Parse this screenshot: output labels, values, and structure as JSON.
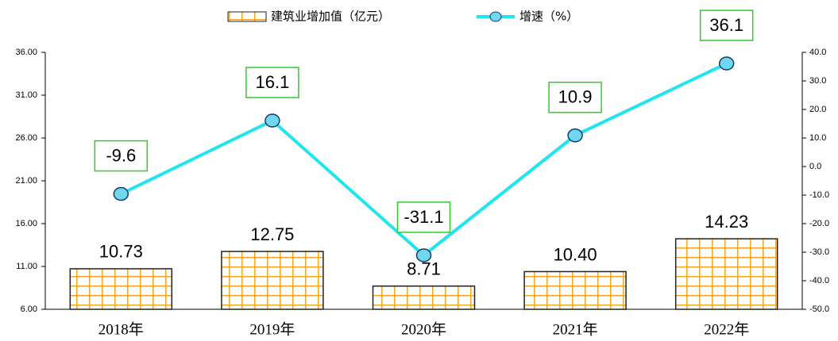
{
  "chart_data": {
    "type": "bar",
    "categories": [
      "2018年",
      "2019年",
      "2020年",
      "2021年",
      "2022年"
    ],
    "series": [
      {
        "name": "建筑业增加值（亿元）",
        "type": "bar",
        "color": "#f5a623",
        "axis": "y",
        "values": [
          10.73,
          12.75,
          8.71,
          10.4,
          14.23
        ],
        "value_labels": [
          "10.73",
          "12.75",
          "8.71",
          "10.40",
          "14.23"
        ]
      },
      {
        "name": "增速（%）",
        "type": "line",
        "color": "#1fe5f0",
        "axis": "y2",
        "values": [
          -9.6,
          16.1,
          -31.1,
          10.9,
          36.1
        ]
      }
    ],
    "ylim": [
      6,
      36
    ],
    "yticks": [
      {
        "value": 6,
        "label": "6.00"
      },
      {
        "value": 11,
        "label": "11.00"
      },
      {
        "value": 16,
        "label": "16.00"
      },
      {
        "value": 21,
        "label": "21.00"
      },
      {
        "value": 26,
        "label": "26.00"
      },
      {
        "value": 31,
        "label": "31.00"
      },
      {
        "value": 36,
        "label": "36.00"
      }
    ],
    "y2lim": [
      -50,
      40
    ],
    "y2ticks": [
      {
        "value": -50,
        "label": "-50.0"
      },
      {
        "value": -40,
        "label": "-40.0"
      },
      {
        "value": -30,
        "label": "-30.0"
      },
      {
        "value": -20,
        "label": "-20.0"
      },
      {
        "value": -10,
        "label": "-10.0"
      },
      {
        "value": 0,
        "label": "0.0"
      },
      {
        "value": 10,
        "label": "10.0"
      },
      {
        "value": 20,
        "label": "20.0"
      },
      {
        "value": 30,
        "label": "30.0"
      },
      {
        "value": 40,
        "label": "40.0"
      }
    ],
    "legend": "top"
  }
}
